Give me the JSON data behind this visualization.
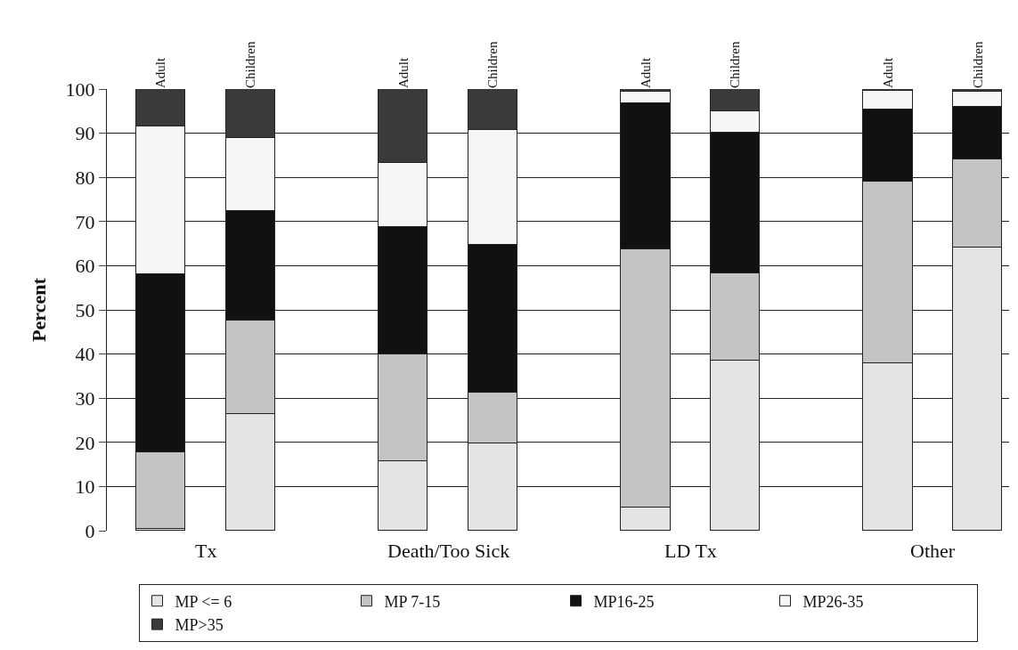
{
  "chart_data": {
    "type": "bar",
    "stacked": true,
    "categories": [
      "Adult",
      "Children",
      "Adult",
      "Children",
      "Adult",
      "Children",
      "Adult",
      "Children"
    ],
    "ylabel": "Percent",
    "ylim": [
      0,
      100
    ],
    "yticks": [
      0,
      10,
      20,
      30,
      40,
      50,
      60,
      70,
      80,
      90,
      100
    ],
    "grid": "y",
    "legend": "bottom",
    "annotations": [
      "Tx",
      "Death/Too Sick",
      "LD Tx",
      "Other"
    ],
    "series": [
      {
        "name": "MP <= 6",
        "color": "#e4e4e4",
        "values": [
          0.5,
          26.5,
          15.7,
          19.7,
          5.3,
          38.5,
          38,
          64.2
        ]
      },
      {
        "name": "MP 7-15",
        "color": "#c4c4c4",
        "values": [
          17.3,
          21,
          24.3,
          11.6,
          58.5,
          19.7,
          41,
          19.8
        ]
      },
      {
        "name": "MP16-25",
        "color": "#111111",
        "values": [
          40.2,
          24.8,
          28.7,
          33.5,
          32.9,
          32,
          16.3,
          12
        ]
      },
      {
        "name": "MP26-35",
        "color": "#f6f6f6",
        "values": [
          33.5,
          16.7,
          14.6,
          25.9,
          2.6,
          4.8,
          4.2,
          3.3
        ]
      },
      {
        "name": "MP>35",
        "color": "#3a3a3a",
        "values": [
          8.5,
          11,
          16.7,
          9.3,
          0.7,
          5,
          0.5,
          0.7
        ]
      }
    ]
  }
}
